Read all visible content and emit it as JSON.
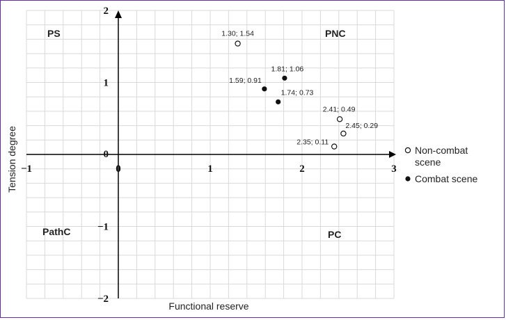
{
  "chart_data": {
    "type": "scatter",
    "xlabel": "Functional reserve",
    "ylabel": "Tension degree",
    "xlim": [
      -1,
      3
    ],
    "ylim": [
      -2,
      2
    ],
    "x_ticks": [
      "−1",
      "0",
      "1",
      "2",
      "3"
    ],
    "y_ticks": [
      "2",
      "1",
      "0",
      "−1",
      "−2"
    ],
    "grid": true,
    "legend_position": "right",
    "quadrants": {
      "top_left": "PS",
      "top_right": "PNC",
      "bottom_left": "PathC",
      "bottom_right": "PC"
    },
    "series": [
      {
        "name": "Non-combat scene",
        "marker": "open-circle",
        "points": [
          {
            "x": 1.3,
            "y": 1.54,
            "label": "1.30; 1.54"
          },
          {
            "x": 2.41,
            "y": 0.49,
            "label": "2.41; 0.49"
          },
          {
            "x": 2.45,
            "y": 0.29,
            "label": "2.45; 0.29"
          },
          {
            "x": 2.35,
            "y": 0.11,
            "label": "2.35; 0.11"
          }
        ]
      },
      {
        "name": "Combat scene",
        "marker": "filled-circle",
        "points": [
          {
            "x": 1.81,
            "y": 1.06,
            "label": "1.81; 1.06"
          },
          {
            "x": 1.59,
            "y": 0.91,
            "label": "1.59; 0.91"
          },
          {
            "x": 1.74,
            "y": 0.73,
            "label": "1.74; 0.73"
          }
        ]
      }
    ],
    "legend": [
      "Non-combat scene",
      "Combat scene"
    ]
  }
}
